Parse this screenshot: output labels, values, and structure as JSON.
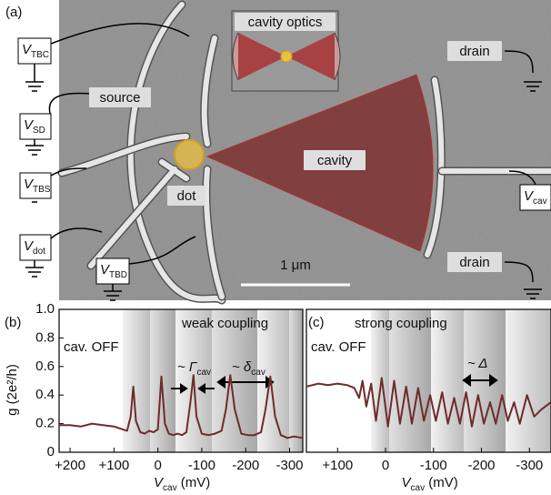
{
  "panel_a": {
    "panel_label": "(a)",
    "labels": {
      "source": "source",
      "drain_top": "drain",
      "drain_bottom": "drain",
      "cavity": "cavity",
      "dot": "dot",
      "inset": "cavity optics",
      "scale": "1 μm"
    },
    "voltages": [
      {
        "symbol": "V",
        "sub": "TBC"
      },
      {
        "symbol": "V",
        "sub": "SD"
      },
      {
        "symbol": "V",
        "sub": "TBS"
      },
      {
        "symbol": "V",
        "sub": "dot"
      },
      {
        "symbol": "V",
        "sub": "TBD"
      },
      {
        "symbol": "V",
        "sub": "cav"
      }
    ]
  },
  "chart_data": [
    {
      "type": "line",
      "panel_label": "(b)",
      "title": "weak coupling",
      "annotations": [
        "cav. OFF"
      ],
      "symbols": [
        {
          "text": "~ Γ",
          "sub": "cav"
        },
        {
          "text": "~ δ",
          "sub": "cav"
        }
      ],
      "ylabel": "g (2e²/h)",
      "xlabel": {
        "symbol": "V",
        "sub": "cav",
        "unit": " (mV)"
      },
      "color": "#6e2b2b",
      "x": [
        225,
        200,
        175,
        150,
        125,
        100,
        90,
        80,
        70,
        62,
        56,
        50,
        40,
        30,
        20,
        10,
        0,
        -8,
        -16,
        -25,
        -35,
        -45,
        -55,
        -65,
        -74,
        -81,
        -88,
        -100,
        -115,
        -130,
        -145,
        -155,
        -165,
        -175,
        -190,
        -205,
        -220,
        -235,
        -245,
        -256,
        -267,
        -280,
        -295,
        -310,
        -330
      ],
      "values": [
        0.19,
        0.19,
        0.18,
        0.2,
        0.19,
        0.18,
        0.17,
        0.16,
        0.15,
        0.25,
        0.46,
        0.22,
        0.14,
        0.13,
        0.15,
        0.14,
        0.16,
        0.53,
        0.2,
        0.13,
        0.12,
        0.13,
        0.12,
        0.14,
        0.35,
        0.54,
        0.25,
        0.13,
        0.12,
        0.13,
        0.15,
        0.3,
        0.54,
        0.3,
        0.13,
        0.12,
        0.12,
        0.14,
        0.3,
        0.53,
        0.25,
        0.12,
        0.1,
        0.11,
        0.1
      ],
      "xlim": [
        225,
        -330
      ],
      "xticks": [
        {
          "value": 200,
          "label": "+200"
        },
        {
          "value": 100,
          "label": "+100"
        },
        0,
        -100,
        -200,
        -300
      ],
      "ylim": [
        0,
        1.0
      ],
      "yticks": [
        0,
        0.2,
        0.4,
        0.6,
        0.8,
        {
          "value": 1.0,
          "label": "1.0"
        }
      ]
    },
    {
      "type": "line",
      "panel_label": "(c)",
      "title": "strong coupling",
      "annotations": [
        "cav. OFF"
      ],
      "symbols": [
        {
          "text": "~ Δ"
        }
      ],
      "xlabel": {
        "symbol": "V",
        "sub": "cav",
        "unit": " (mV)"
      },
      "color": "#6e2b2b",
      "x": [
        165,
        140,
        120,
        100,
        80,
        65,
        55,
        48,
        40,
        30,
        20,
        8,
        -5,
        -18,
        -30,
        -43,
        -55,
        -68,
        -80,
        -93,
        -105,
        -118,
        -130,
        -143,
        -155,
        -168,
        -180,
        -193,
        -205,
        -218,
        -230,
        -243,
        -255,
        -268,
        -280,
        -295,
        -310,
        -325,
        -345
      ],
      "values": [
        0.46,
        0.48,
        0.47,
        0.48,
        0.47,
        0.45,
        0.38,
        0.5,
        0.32,
        0.48,
        0.22,
        0.52,
        0.18,
        0.5,
        0.2,
        0.46,
        0.2,
        0.45,
        0.22,
        0.4,
        0.22,
        0.42,
        0.2,
        0.38,
        0.2,
        0.42,
        0.18,
        0.4,
        0.2,
        0.35,
        0.2,
        0.4,
        0.22,
        0.35,
        0.2,
        0.4,
        0.25,
        0.3,
        0.35
      ],
      "xlim": [
        165,
        -345
      ],
      "xticks": [
        {
          "value": 100,
          "label": "+100"
        },
        0,
        -100,
        -200,
        -300
      ],
      "ylim": [
        0,
        1.0
      ]
    }
  ]
}
